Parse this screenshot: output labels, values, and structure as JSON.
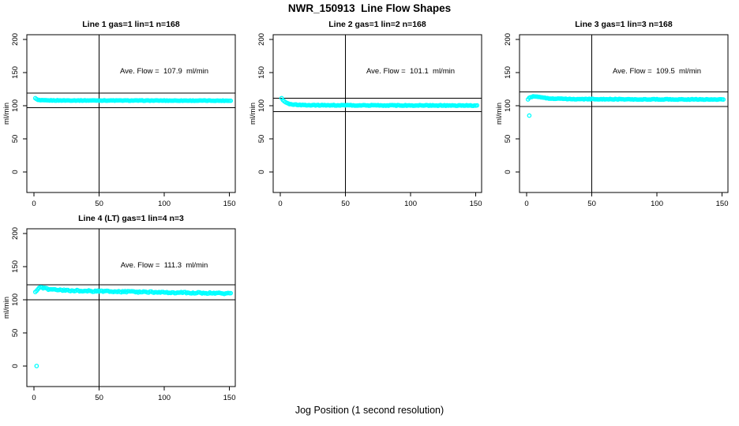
{
  "figure": {
    "title": "NWR_150913  Line Flow Shapes",
    "xlabel": "Jog Position (1 second resolution)",
    "background_color": "#ffffff",
    "point_color": "#00ffff",
    "axis_color": "#000000"
  },
  "chart_data": [
    {
      "type": "scatter",
      "title": "Line 1 gas=1 lin=1 n=168",
      "annotation": "Ave. Flow =  107.9  ml/min",
      "ave_flow_ml_min": 107.9,
      "ylabel": "ml/min",
      "xlim": [
        -5.5,
        154.5
      ],
      "ylim": [
        -31,
        207
      ],
      "xticks": [
        0,
        50,
        100,
        150
      ],
      "yticks": [
        0,
        50,
        100,
        150,
        200
      ],
      "hlines": [
        118.69,
        97.11
      ],
      "vline": 50,
      "x_range": [
        1,
        151
      ],
      "profile_anchors": [
        [
          1,
          111.5
        ],
        [
          2,
          109.6
        ],
        [
          3,
          108.6
        ],
        [
          5,
          108.1
        ],
        [
          10,
          107.9
        ],
        [
          80,
          107.7
        ],
        [
          151,
          107.5
        ]
      ],
      "noise": 0.35,
      "outliers": []
    },
    {
      "type": "scatter",
      "title": "Line 2 gas=1 lin=2 n=168",
      "annotation": "Ave. Flow =  101.1  ml/min",
      "ave_flow_ml_min": 101.1,
      "ylabel": "ml/min",
      "xlim": [
        -5.5,
        154.5
      ],
      "ylim": [
        -31,
        207
      ],
      "xticks": [
        0,
        50,
        100,
        150
      ],
      "yticks": [
        0,
        50,
        100,
        150,
        200
      ],
      "hlines": [
        111.21,
        90.99
      ],
      "vline": 50,
      "x_range": [
        1,
        151
      ],
      "profile_anchors": [
        [
          1,
          111.0
        ],
        [
          2,
          108.3
        ],
        [
          3,
          106.2
        ],
        [
          5,
          103.8
        ],
        [
          7,
          102.5
        ],
        [
          10,
          101.7
        ],
        [
          15,
          101.1
        ],
        [
          25,
          100.7
        ],
        [
          80,
          100.4
        ],
        [
          151,
          100.2
        ]
      ],
      "noise": 0.55,
      "outliers": []
    },
    {
      "type": "scatter",
      "title": "Line 3 gas=1 lin=3 n=168",
      "annotation": "Ave. Flow =  109.5  ml/min",
      "ave_flow_ml_min": 109.5,
      "ylabel": "ml/min",
      "xlim": [
        -5.5,
        154.5
      ],
      "ylim": [
        -31,
        207
      ],
      "xticks": [
        0,
        50,
        100,
        150
      ],
      "yticks": [
        0,
        50,
        100,
        150,
        200
      ],
      "hlines": [
        120.45,
        98.55
      ],
      "vline": 50,
      "x_range": [
        1,
        151
      ],
      "profile_anchors": [
        [
          1,
          109.5
        ],
        [
          2,
          111.5
        ],
        [
          3,
          112.8
        ],
        [
          5,
          113.8
        ],
        [
          8,
          113.4
        ],
        [
          12,
          112.0
        ],
        [
          18,
          110.8
        ],
        [
          30,
          110.0
        ],
        [
          80,
          109.6
        ],
        [
          151,
          109.3
        ]
      ],
      "noise": 0.5,
      "outliers": [
        [
          2,
          85
        ]
      ]
    },
    {
      "type": "scatter",
      "title": "Line 4 (LT) gas=1 lin=4 n=3",
      "annotation": "Ave. Flow =  111.3  ml/min",
      "ave_flow_ml_min": 111.3,
      "ylabel": "ml/min",
      "xlim": [
        -5.5,
        154.5
      ],
      "ylim": [
        -31,
        207
      ],
      "xticks": [
        0,
        50,
        100,
        150
      ],
      "yticks": [
        0,
        50,
        100,
        150,
        200
      ],
      "hlines": [
        122.43,
        100.17
      ],
      "vline": 50,
      "x_range": [
        1,
        151
      ],
      "profile_anchors": [
        [
          1,
          112.0
        ],
        [
          2,
          114.0
        ],
        [
          3,
          116.5
        ],
        [
          4,
          118.5
        ],
        [
          5,
          119.3
        ],
        [
          7,
          117.6
        ],
        [
          10,
          116.2
        ],
        [
          15,
          115.2
        ],
        [
          25,
          114.2
        ],
        [
          40,
          113.2
        ],
        [
          60,
          112.4
        ],
        [
          90,
          111.4
        ],
        [
          120,
          110.4
        ],
        [
          151,
          109.4
        ]
      ],
      "noise": 1.0,
      "outliers": [
        [
          2,
          0
        ]
      ]
    }
  ]
}
